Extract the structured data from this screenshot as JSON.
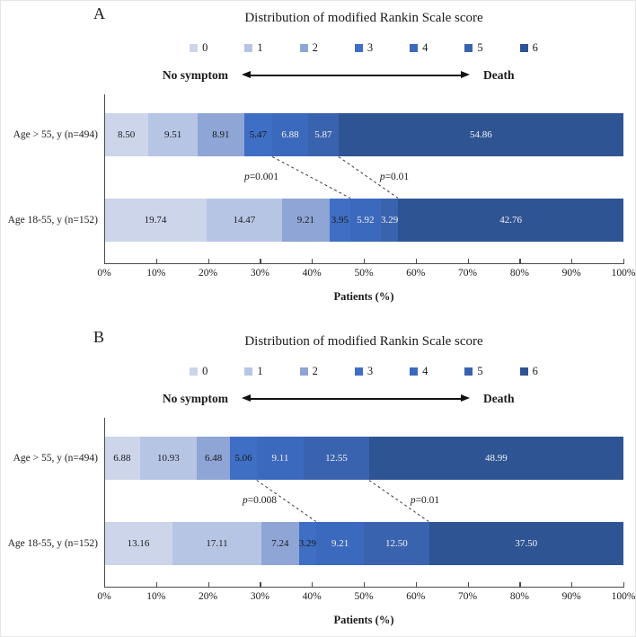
{
  "figure": {
    "background": "#ffffff"
  },
  "colors": {
    "segments": [
      "#ccd5ea",
      "#b7c5e5",
      "#8ea5d5",
      "#3f6fc4",
      "#3b69bd",
      "#3a63af",
      "#2e5494"
    ],
    "axis": "#4a4a4a",
    "dashed_line": "#3a3a3a",
    "value_text_dark": "#1a1a1a",
    "value_text_light": "#f2f2f2",
    "arrow": "#111111"
  },
  "chart_data": [
    {
      "type": "bar",
      "orientation": "horizontal",
      "stacked": true,
      "unit": "percent",
      "panel_label": "A",
      "title": "Distribution of modified Rankin Scale score",
      "legend_position": "top",
      "scale_direction_labels": {
        "left": "No symptom",
        "right": "Death"
      },
      "categories": [
        "Age > 55, y (n=494)",
        "Age 18-55, y (n=152)"
      ],
      "series": [
        {
          "name": "0",
          "values": [
            8.5,
            19.74
          ]
        },
        {
          "name": "1",
          "values": [
            9.51,
            14.47
          ]
        },
        {
          "name": "2",
          "values": [
            8.91,
            9.21
          ]
        },
        {
          "name": "3",
          "values": [
            5.47,
            3.95
          ]
        },
        {
          "name": "4",
          "values": [
            6.88,
            5.92
          ]
        },
        {
          "name": "5",
          "values": [
            5.87,
            3.29
          ]
        },
        {
          "name": "6",
          "values": [
            54.86,
            42.76
          ]
        }
      ],
      "p_values": [
        {
          "label": "p=0.001",
          "after_score": 3
        },
        {
          "label": "p=0.01",
          "after_score": 5
        }
      ],
      "xlabel": "Patients (%)",
      "xlim": [
        0,
        100
      ],
      "x_tick_labels": [
        "0%",
        "10%",
        "20%",
        "30%",
        "40%",
        "50%",
        "60%",
        "70%",
        "80%",
        "90%",
        "100%"
      ]
    },
    {
      "type": "bar",
      "orientation": "horizontal",
      "stacked": true,
      "unit": "percent",
      "panel_label": "B",
      "title": "Distribution of modified Rankin Scale score",
      "legend_position": "top",
      "scale_direction_labels": {
        "left": "No symptom",
        "right": "Death"
      },
      "categories": [
        "Age > 55, y (n=494)",
        "Age 18-55, y (n=152)"
      ],
      "series": [
        {
          "name": "0",
          "values": [
            6.88,
            13.16
          ]
        },
        {
          "name": "1",
          "values": [
            10.93,
            17.11
          ]
        },
        {
          "name": "2",
          "values": [
            6.48,
            7.24
          ]
        },
        {
          "name": "3",
          "values": [
            5.06,
            3.29
          ]
        },
        {
          "name": "4",
          "values": [
            9.11,
            9.21
          ]
        },
        {
          "name": "5",
          "values": [
            12.55,
            12.5
          ]
        },
        {
          "name": "6",
          "values": [
            48.99,
            37.5
          ]
        }
      ],
      "p_values": [
        {
          "label": "p=0.008",
          "after_score": 3
        },
        {
          "label": "p=0.01",
          "after_score": 5
        }
      ],
      "xlabel": "Patients (%)",
      "xlim": [
        0,
        100
      ],
      "x_tick_labels": [
        "0%",
        "10%",
        "20%",
        "30%",
        "40%",
        "50%",
        "60%",
        "70%",
        "80%",
        "90%",
        "100%"
      ]
    }
  ]
}
